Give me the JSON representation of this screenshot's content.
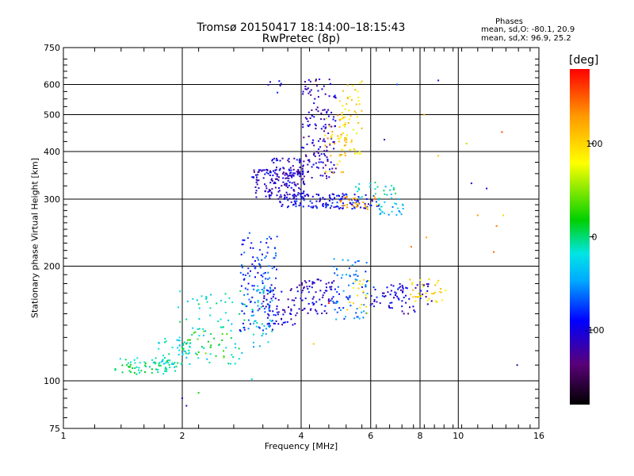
{
  "chart_data": {
    "type": "scatter",
    "title": "Tromsø 20150417 18:14:00–18:15:43",
    "subtitle": "RwPretec (8p)",
    "stats": {
      "heading": "Phases",
      "line1": "mean, sd,O: -80.1, 20.9",
      "line2": "mean, sd,X:  96.9, 25.2"
    },
    "xlabel": "Frequency [MHz]",
    "ylabel": "Stationary phase Virtual Height [km]",
    "x_scale": "log",
    "y_scale": "log",
    "xlim": [
      1,
      16
    ],
    "ylim": [
      75,
      750
    ],
    "grid": true,
    "x_ticks": [
      1,
      2,
      4,
      6,
      8,
      10,
      16
    ],
    "y_ticks": [
      75,
      100,
      200,
      300,
      400,
      500,
      600,
      750
    ],
    "colorbar": {
      "label": "[deg]",
      "range": [
        -180,
        180
      ],
      "ticks": [
        100,
        0,
        -100
      ]
    },
    "clusters": [
      {
        "f": [
          1.35,
          1.95
        ],
        "h": [
          104,
          115
        ],
        "phase": -5,
        "n": 70
      },
      {
        "f": [
          1.7,
          2.1
        ],
        "h": [
          110,
          130
        ],
        "phase": -20,
        "n": 40
      },
      {
        "f": [
          1.95,
          2.9
        ],
        "h": [
          110,
          175
        ],
        "phase": -15,
        "n": 80
      },
      {
        "f": [
          2.0,
          2.6
        ],
        "h": [
          115,
          135
        ],
        "phase": 20,
        "n": 25
      },
      {
        "f": [
          2.8,
          3.5
        ],
        "h": [
          135,
          245
        ],
        "phase": -80,
        "n": 130
      },
      {
        "f": [
          3.0,
          3.4
        ],
        "h": [
          120,
          180
        ],
        "phase": -30,
        "n": 45
      },
      {
        "f": [
          3.2,
          3.9
        ],
        "h": [
          140,
          175
        ],
        "phase": -110,
        "n": 55
      },
      {
        "f": [
          3.9,
          5.0
        ],
        "h": [
          150,
          185
        ],
        "phase": -105,
        "n": 80
      },
      {
        "f": [
          4.8,
          5.9
        ],
        "h": [
          145,
          210
        ],
        "phase": -60,
        "n": 70
      },
      {
        "f": [
          5.2,
          6.0
        ],
        "h": [
          150,
          185
        ],
        "phase": 90,
        "n": 20
      },
      {
        "f": [
          6.0,
          7.4
        ],
        "h": [
          155,
          180
        ],
        "phase": -100,
        "n": 50
      },
      {
        "f": [
          7.5,
          9.3
        ],
        "h": [
          160,
          185
        ],
        "phase": 100,
        "n": 35
      },
      {
        "f": [
          7.2,
          8.8
        ],
        "h": [
          150,
          180
        ],
        "phase": -110,
        "n": 25
      },
      {
        "f": [
          3.0,
          4.1
        ],
        "h": [
          300,
          360
        ],
        "phase": -110,
        "n": 160
      },
      {
        "f": [
          3.3,
          4.0
        ],
        "h": [
          340,
          385
        ],
        "phase": -105,
        "n": 40
      },
      {
        "f": [
          3.5,
          6.3
        ],
        "h": [
          283,
          310
        ],
        "phase": -95,
        "n": 140
      },
      {
        "f": [
          5.0,
          6.3
        ],
        "h": [
          280,
          305
        ],
        "phase": 120,
        "n": 30
      },
      {
        "f": [
          5.5,
          7.0
        ],
        "h": [
          300,
          335
        ],
        "phase": -20,
        "n": 25
      },
      {
        "f": [
          6.2,
          7.3
        ],
        "h": [
          270,
          300
        ],
        "phase": -40,
        "n": 25
      },
      {
        "f": [
          4.0,
          4.9
        ],
        "h": [
          340,
          620
        ],
        "phase": -110,
        "n": 150
      },
      {
        "f": [
          4.6,
          5.2
        ],
        "h": [
          350,
          500
        ],
        "phase": 110,
        "n": 40
      },
      {
        "f": [
          5.0,
          5.7
        ],
        "h": [
          390,
          630
        ],
        "phase": 95,
        "n": 60
      },
      {
        "f": [
          3.3,
          3.6
        ],
        "h": [
          560,
          620
        ],
        "phase": -100,
        "n": 6
      }
    ],
    "points": [
      {
        "x": 2.0,
        "y": 90,
        "phase": -110
      },
      {
        "x": 2.05,
        "y": 86,
        "phase": -120
      },
      {
        "x": 2.2,
        "y": 93,
        "phase": 20
      },
      {
        "x": 3.0,
        "y": 101,
        "phase": -20
      },
      {
        "x": 7.0,
        "y": 600,
        "phase": -70
      },
      {
        "x": 8.9,
        "y": 615,
        "phase": -110
      },
      {
        "x": 6.5,
        "y": 430,
        "phase": -120
      },
      {
        "x": 8.2,
        "y": 500,
        "phase": 120
      },
      {
        "x": 8.9,
        "y": 390,
        "phase": 110
      },
      {
        "x": 10.5,
        "y": 420,
        "phase": 60
      },
      {
        "x": 12.9,
        "y": 450,
        "phase": 160
      },
      {
        "x": 10.8,
        "y": 330,
        "phase": -110
      },
      {
        "x": 11.8,
        "y": 320,
        "phase": -100
      },
      {
        "x": 11.2,
        "y": 272,
        "phase": 130
      },
      {
        "x": 13.0,
        "y": 272,
        "phase": 100
      },
      {
        "x": 12.5,
        "y": 255,
        "phase": 140
      },
      {
        "x": 12.3,
        "y": 218,
        "phase": 150
      },
      {
        "x": 8.3,
        "y": 238,
        "phase": 120
      },
      {
        "x": 7.6,
        "y": 225,
        "phase": 140
      },
      {
        "x": 14.1,
        "y": 110,
        "phase": -120
      },
      {
        "x": 4.3,
        "y": 125,
        "phase": 110
      },
      {
        "x": 4.7,
        "y": 160,
        "phase": 170
      }
    ]
  }
}
